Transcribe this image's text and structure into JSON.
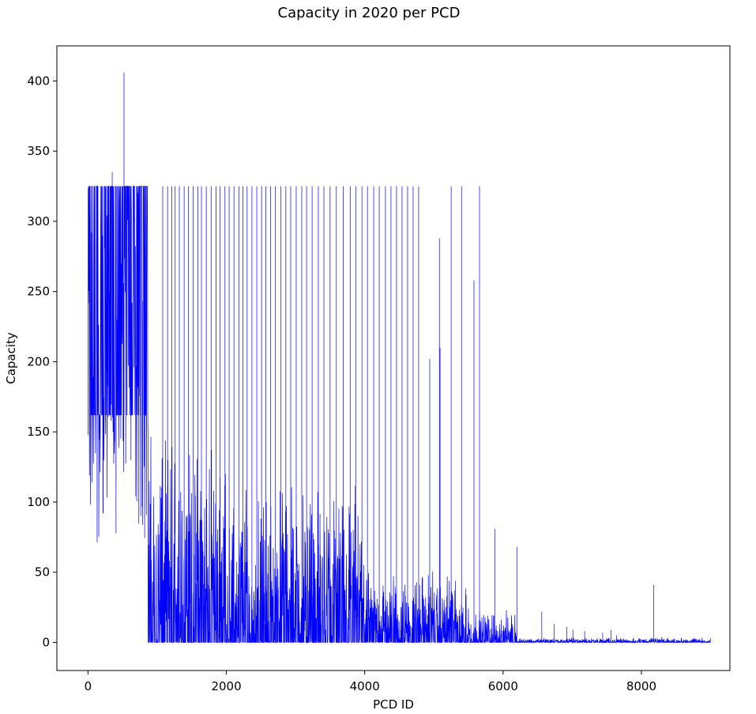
{
  "chart_data": {
    "type": "line",
    "title": "Capacity in 2020 per PCD",
    "xlabel": "PCD ID",
    "ylabel": "Capacity",
    "xlim": [
      -450,
      9280
    ],
    "ylim": [
      -20,
      425
    ],
    "xticks": [
      0,
      2000,
      4000,
      6000,
      8000
    ],
    "yticks": [
      0,
      50,
      100,
      150,
      200,
      250,
      300,
      350,
      400
    ],
    "grid": false,
    "legend": "none",
    "series_color": "#0000ff",
    "series": [
      {
        "x_range": [
          0,
          9000
        ],
        "segments": [
          {
            "x_start": 0,
            "x_end": 870,
            "floor": 162,
            "cap": 325,
            "min": 70
          },
          {
            "x_start": 870,
            "x_end": 2000,
            "floor": 0,
            "band_top": 130
          },
          {
            "x_start": 2000,
            "x_end": 4000,
            "floor": 0,
            "band_top": 100
          },
          {
            "x_start": 4000,
            "x_end": 5500,
            "floor": 0,
            "band_top": 45
          },
          {
            "x_start": 5500,
            "x_end": 6200,
            "floor": 0,
            "band_top": 20
          },
          {
            "x_start": 6200,
            "x_end": 9000,
            "floor": 0,
            "band_top": 3
          }
        ],
        "spikes": [
          {
            "x": 520,
            "y": 406
          },
          {
            "x": 350,
            "y": 335
          },
          {
            "x": 5080,
            "y": 288
          },
          {
            "x": 5580,
            "y": 258
          },
          {
            "x": 5090,
            "y": 210
          },
          {
            "x": 4940,
            "y": 202
          },
          {
            "x": 5880,
            "y": 81
          },
          {
            "x": 6200,
            "y": 68
          },
          {
            "x": 6560,
            "y": 22
          },
          {
            "x": 6740,
            "y": 13
          },
          {
            "x": 6920,
            "y": 11
          },
          {
            "x": 7010,
            "y": 9
          },
          {
            "x": 7180,
            "y": 8
          },
          {
            "x": 7440,
            "y": 7
          },
          {
            "x": 7560,
            "y": 9
          },
          {
            "x": 7640,
            "y": 5
          },
          {
            "x": 7880,
            "y": 3
          },
          {
            "x": 8180,
            "y": 41
          }
        ],
        "capped_spikes_value": 325,
        "capped_spikes_x": [
          1080,
          1150,
          1210,
          1260,
          1320,
          1390,
          1450,
          1520,
          1590,
          1640,
          1710,
          1780,
          1850,
          1910,
          1980,
          2040,
          2110,
          2180,
          2240,
          2300,
          2370,
          2440,
          2510,
          2570,
          2640,
          2710,
          2790,
          2860,
          2930,
          3010,
          3090,
          3160,
          3240,
          3330,
          3410,
          3500,
          3590,
          3690,
          3790,
          3870,
          3960,
          4040,
          4130,
          4210,
          4300,
          4380,
          4460,
          4540,
          4620,
          4700,
          4780,
          5250,
          5400,
          5660
        ]
      }
    ]
  }
}
